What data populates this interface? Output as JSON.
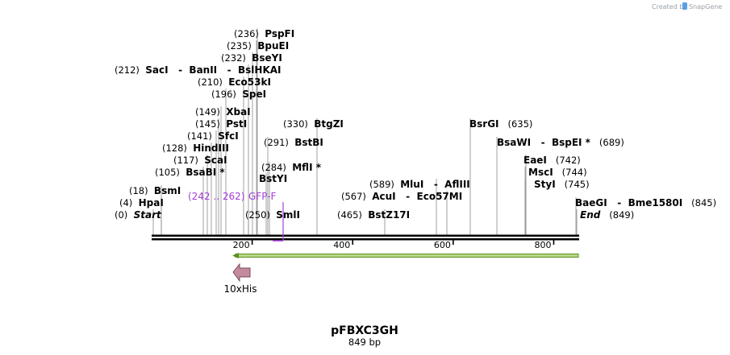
{
  "credit": {
    "prefix": "Created by",
    "brand": "SnapGene"
  },
  "map": {
    "name": "pFBXC3GH",
    "length_label": "849 bp",
    "ticks": [
      "200",
      "400",
      "600",
      "800"
    ],
    "primer": {
      "range": "(242 .. 262)",
      "name": "GFP-F",
      "color": "#a340d8"
    },
    "feature": {
      "name": "10xHis",
      "color": "#c48aa0"
    },
    "sites": [
      {
        "pos": "(0)",
        "name": "Start",
        "italic": true
      },
      {
        "pos": "(4)",
        "name": "HpaI"
      },
      {
        "pos": "(18)",
        "name": "BsmI"
      },
      {
        "pos": "(105)",
        "name": "BsaBI *"
      },
      {
        "pos": "(117)",
        "name": "ScaI"
      },
      {
        "pos": "(128)",
        "name": "HindIII"
      },
      {
        "pos": "(141)",
        "name": "SfcI"
      },
      {
        "pos": "(145)",
        "name": "PstI"
      },
      {
        "pos": "(149)",
        "name": "XbaI"
      },
      {
        "pos": "(196)",
        "name": "SpeI"
      },
      {
        "pos": "(210)",
        "name": "Eco53kI"
      },
      {
        "pos": "(212)",
        "name": "SacI   -  BanII   -  BslHKAI"
      },
      {
        "pos": "(232)",
        "name": "BseYI"
      },
      {
        "pos": "(235)",
        "name": "BpuEI"
      },
      {
        "pos": "(236)",
        "name": "PspFI"
      },
      {
        "pos": "(250)",
        "name": "SmlI"
      },
      {
        "pos": "(284)",
        "name": "MflI *"
      },
      {
        "pos": "",
        "name": "BstYI"
      },
      {
        "pos": "(291)",
        "name": "BstBI"
      },
      {
        "pos": "(330)",
        "name": "BtgZI"
      },
      {
        "pos": "(465)",
        "name": "BstZ17I"
      },
      {
        "pos": "(567)",
        "name": "AcuI   -  Eco57MI"
      },
      {
        "pos": "(589)",
        "name": "MluI   -  AflIII"
      },
      {
        "pos": "(635)",
        "name": "BsrGI",
        "pos_after": true
      },
      {
        "pos": "(689)",
        "name": "BsaWI   -  BspEI *",
        "pos_after": true
      },
      {
        "pos": "(742)",
        "name": "EaeI",
        "pos_after": true
      },
      {
        "pos": "(744)",
        "name": "MscI",
        "pos_after": true
      },
      {
        "pos": "(745)",
        "name": "StyI",
        "pos_after": true
      },
      {
        "pos": "(845)",
        "name": "BaeGI   -  Bme1580I",
        "pos_after": true
      },
      {
        "pos": "(849)",
        "name": "End",
        "italic": true,
        "pos_after": true
      }
    ]
  }
}
